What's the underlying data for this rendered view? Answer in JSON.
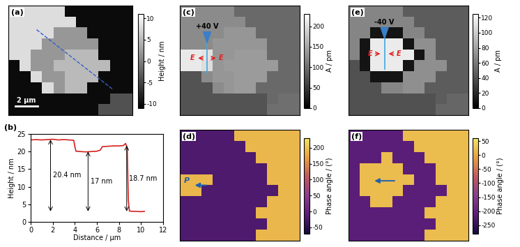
{
  "chart_data": [
    {
      "panel": "(a)",
      "type": "heatmap",
      "color": "gray",
      "tick_labels": false,
      "cells": [
        [
          8,
          8,
          8,
          8,
          8,
          -10,
          -10,
          -10,
          -10,
          -10,
          -10
        ],
        [
          8,
          8,
          8,
          8,
          8,
          8,
          -10,
          -10,
          -10,
          -10,
          -10
        ],
        [
          8,
          8,
          8,
          8,
          2,
          2,
          2,
          -10,
          -10,
          -10,
          -10
        ],
        [
          8,
          8,
          8,
          2,
          2,
          2,
          2,
          2,
          -10,
          -10,
          -10
        ],
        [
          8,
          8,
          2,
          2,
          2,
          5,
          5,
          5,
          -10,
          -10,
          -10
        ],
        [
          -10,
          8,
          2,
          2,
          5,
          5,
          5,
          5,
          5,
          -10,
          -10
        ],
        [
          -10,
          -10,
          8,
          2,
          2,
          5,
          5,
          5,
          -10,
          -10,
          -10
        ],
        [
          -10,
          -10,
          -10,
          8,
          2,
          5,
          5,
          -10,
          -10,
          -10,
          -10
        ],
        [
          -10,
          -10,
          -10,
          -10,
          -10,
          -10,
          -10,
          -10,
          -10,
          -4,
          -4
        ],
        [
          -10,
          -10,
          -10,
          -10,
          -10,
          -10,
          -10,
          -10,
          -4,
          -4,
          -4
        ]
      ],
      "colorbar": {
        "label": "Height / nm",
        "range": [
          -11,
          11
        ],
        "ticks": [
          -10,
          -5,
          0,
          5,
          10
        ]
      },
      "scale_bar": {
        "length": 2,
        "label": "2 μm"
      },
      "annotations": []
    },
    {
      "panel": "(b)",
      "type": "line",
      "color": "#d62020",
      "line_style": "solid",
      "x": [
        0,
        0.5,
        1,
        1.5,
        2,
        2.5,
        3,
        3.5,
        3.9,
        4.0,
        4.1,
        4.5,
        5,
        5.5,
        6,
        6.3,
        6.5,
        7,
        7.5,
        8,
        8.4,
        8.6,
        8.75,
        8.85,
        8.95,
        9.2,
        9.5,
        10,
        10.3
      ],
      "values": [
        23.3,
        23.4,
        23.3,
        23.4,
        23.5,
        23.3,
        23.4,
        23.3,
        23.2,
        21.5,
        20.1,
        20.0,
        19.9,
        20.0,
        20.1,
        20.4,
        21.4,
        21.5,
        21.6,
        21.6,
        21.7,
        22.3,
        21.0,
        6.0,
        3.1,
        3.0,
        3.0,
        2.9,
        3.0
      ],
      "x_label": "Distance / μm",
      "y_label": "Height / nm",
      "xlim": [
        0,
        12
      ],
      "xticks": [
        0,
        2,
        4,
        6,
        8,
        10,
        12
      ],
      "ylim": [
        0,
        25
      ],
      "yticks": [
        0,
        5,
        10,
        15,
        20,
        25
      ],
      "grid": false,
      "annotations": [
        {
          "text": "20.4 nm",
          "x": 1.8,
          "y_from": 3,
          "y_to": 23.4
        },
        {
          "text": "17 nm",
          "x": 5.2,
          "y_from": 3,
          "y_to": 20
        },
        {
          "text": "18.7 nm",
          "x": 8.7,
          "y_from": 3,
          "y_to": 21.7
        }
      ]
    },
    {
      "panel": "(c)",
      "type": "heatmap",
      "color": "gray",
      "tick_labels": false,
      "cells": [
        [
          125,
          125,
          125,
          125,
          125,
          95,
          95,
          95,
          95,
          95,
          95
        ],
        [
          125,
          125,
          125,
          125,
          125,
          125,
          95,
          95,
          95,
          95,
          95
        ],
        [
          125,
          125,
          125,
          125,
          135,
          135,
          135,
          95,
          95,
          95,
          95
        ],
        [
          125,
          125,
          125,
          135,
          135,
          135,
          135,
          135,
          95,
          95,
          95
        ],
        [
          210,
          210,
          205,
          135,
          135,
          140,
          140,
          140,
          95,
          95,
          95
        ],
        [
          210,
          210,
          200,
          135,
          140,
          140,
          140,
          140,
          140,
          95,
          95
        ],
        [
          75,
          75,
          125,
          135,
          135,
          140,
          140,
          140,
          95,
          95,
          95
        ],
        [
          75,
          75,
          75,
          125,
          135,
          140,
          140,
          95,
          95,
          95,
          95
        ],
        [
          75,
          75,
          75,
          75,
          75,
          75,
          75,
          75,
          95,
          100,
          100
        ],
        [
          75,
          75,
          75,
          75,
          75,
          75,
          75,
          75,
          100,
          100,
          100
        ]
      ],
      "colorbar": {
        "label": "A / pm",
        "range": [
          0,
          230
        ],
        "ticks": [
          0,
          50,
          100,
          150,
          200
        ]
      },
      "annotations": [
        "+40 V",
        "E",
        "E"
      ]
    },
    {
      "panel": "(d)",
      "type": "heatmap",
      "color": "purple-yellow",
      "tick_labels": false,
      "cells": [
        [
          -20,
          -20,
          -20,
          -20,
          -20,
          190,
          190,
          190,
          190,
          190,
          190
        ],
        [
          -20,
          -20,
          -20,
          -20,
          -20,
          -20,
          190,
          190,
          190,
          190,
          190
        ],
        [
          -20,
          -20,
          -20,
          -20,
          -20,
          -20,
          -20,
          190,
          190,
          190,
          190
        ],
        [
          -20,
          -20,
          -20,
          -20,
          -20,
          -20,
          -20,
          -20,
          190,
          190,
          190
        ],
        [
          190,
          190,
          190,
          -20,
          -20,
          -20,
          -20,
          -20,
          190,
          190,
          190
        ],
        [
          190,
          190,
          -20,
          -20,
          -20,
          -20,
          -20,
          -20,
          -20,
          190,
          190
        ],
        [
          -20,
          -20,
          -20,
          -20,
          -20,
          -20,
          -20,
          -20,
          190,
          190,
          190
        ],
        [
          -20,
          -20,
          -20,
          -20,
          -20,
          -20,
          -20,
          190,
          190,
          190,
          190
        ],
        [
          -20,
          -20,
          -20,
          -20,
          -20,
          -20,
          -20,
          -20,
          190,
          190,
          190
        ],
        [
          -20,
          -20,
          -20,
          -20,
          -20,
          -20,
          -20,
          190,
          190,
          190,
          190
        ]
      ],
      "colorbar": {
        "label": "Phase angle / (°)",
        "range": [
          -70,
          230
        ],
        "ticks": [
          -50,
          0,
          50,
          100,
          150,
          200
        ]
      },
      "annotations": [
        "P"
      ]
    },
    {
      "panel": "(e)",
      "type": "heatmap",
      "color": "gray",
      "tick_labels": false,
      "cells": [
        [
          65,
          65,
          65,
          65,
          65,
          45,
          45,
          45,
          45,
          45,
          45
        ],
        [
          65,
          65,
          65,
          65,
          65,
          65,
          45,
          45,
          45,
          45,
          45
        ],
        [
          65,
          65,
          10,
          10,
          10,
          65,
          65,
          45,
          45,
          45,
          45
        ],
        [
          65,
          10,
          115,
          115,
          115,
          10,
          70,
          70,
          45,
          45,
          45
        ],
        [
          65,
          10,
          115,
          115,
          115,
          115,
          10,
          70,
          45,
          45,
          45
        ],
        [
          40,
          10,
          115,
          115,
          115,
          10,
          70,
          70,
          70,
          45,
          45
        ],
        [
          40,
          40,
          10,
          10,
          10,
          70,
          70,
          70,
          45,
          45,
          45
        ],
        [
          40,
          40,
          40,
          65,
          65,
          70,
          70,
          45,
          45,
          45,
          45
        ],
        [
          40,
          40,
          40,
          40,
          40,
          40,
          40,
          40,
          45,
          50,
          50
        ],
        [
          40,
          40,
          40,
          40,
          40,
          40,
          40,
          40,
          50,
          50,
          50
        ]
      ],
      "colorbar": {
        "label": "A / pm",
        "range": [
          0,
          125
        ],
        "ticks": [
          0,
          20,
          40,
          60,
          80,
          100,
          120
        ]
      },
      "annotations": [
        "-40 V",
        "E",
        "E"
      ]
    },
    {
      "panel": "(f)",
      "type": "heatmap",
      "color": "purple-yellow",
      "tick_labels": false,
      "cells": [
        [
          -210,
          -210,
          -210,
          -210,
          -210,
          20,
          20,
          20,
          20,
          20,
          20
        ],
        [
          -210,
          -210,
          -210,
          -210,
          -210,
          -210,
          20,
          20,
          20,
          20,
          20
        ],
        [
          -210,
          -210,
          -210,
          20,
          -210,
          -210,
          -210,
          20,
          20,
          20,
          20
        ],
        [
          -210,
          20,
          20,
          20,
          20,
          -210,
          -210,
          -210,
          20,
          20,
          20
        ],
        [
          -210,
          20,
          20,
          20,
          20,
          20,
          -210,
          -210,
          20,
          20,
          20
        ],
        [
          -210,
          20,
          20,
          20,
          20,
          -210,
          -210,
          -210,
          -210,
          20,
          20
        ],
        [
          -210,
          -210,
          20,
          20,
          -210,
          -210,
          -210,
          -210,
          20,
          20,
          20
        ],
        [
          -210,
          -210,
          -210,
          -210,
          -210,
          -210,
          -210,
          20,
          20,
          20,
          20
        ],
        [
          -210,
          -210,
          -210,
          -210,
          -210,
          -210,
          -210,
          -210,
          20,
          20,
          20
        ],
        [
          -210,
          -210,
          -210,
          -210,
          -210,
          -210,
          -210,
          20,
          20,
          20,
          20
        ]
      ],
      "colorbar": {
        "label": "Phase angle / (°)",
        "range": [
          -280,
          60
        ],
        "ticks": [
          -250,
          -200,
          -150,
          -100,
          -50,
          0,
          50
        ]
      },
      "annotations": []
    }
  ]
}
